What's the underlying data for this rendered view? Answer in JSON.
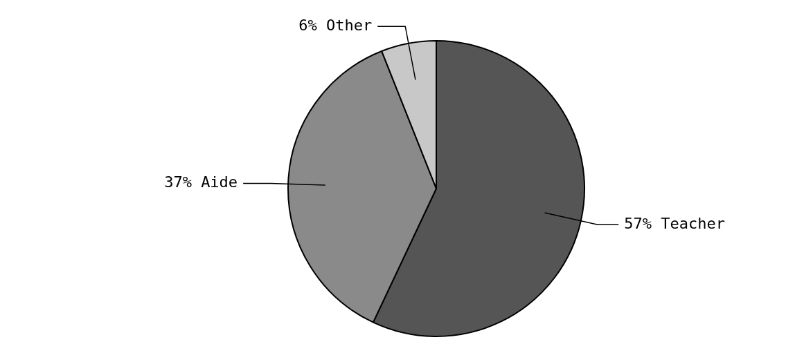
{
  "chart_data": {
    "type": "pie",
    "categories": [
      "Teacher",
      "Aide",
      "Other"
    ],
    "values": [
      57,
      37,
      6
    ],
    "value_labels": [
      "57%",
      "37%",
      "6%"
    ],
    "colors": [
      "#555555",
      "#8a8a8a",
      "#c8c8c8"
    ],
    "legend": false
  }
}
